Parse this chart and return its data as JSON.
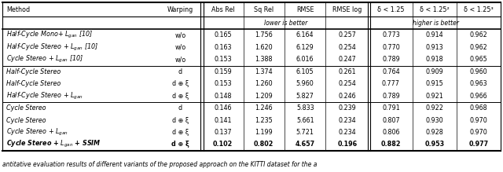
{
  "headers": [
    "Method",
    "Warping",
    "Abs Rel",
    "Sq Rel",
    "RMSE",
    "RMSE log",
    "δ < 1.25",
    "δ < 1.25²",
    "δ < 1.25³"
  ],
  "subheader1": "lower is better",
  "subheader2": "higher is better",
  "rows": [
    [
      "Half-Cycle Mono+ $L_{gan}$ [10]",
      "w/o",
      "0.165",
      "1.756",
      "6.164",
      "0.257",
      "0.773",
      "0.914",
      "0.962"
    ],
    [
      "Half-Cycle Stereo + $L_{gan}$ [10]",
      "w/o",
      "0.163",
      "1.620",
      "6.129",
      "0.254",
      "0.770",
      "0.913",
      "0.962"
    ],
    [
      "Cycle Stereo + $L_{gan}$ [10]",
      "w/o",
      "0.153",
      "1.388",
      "6.016",
      "0.247",
      "0.789",
      "0.918",
      "0.965"
    ],
    [
      "Half-Cycle Stereo",
      "d",
      "0.159",
      "1.374",
      "6.105",
      "0.261",
      "0.764",
      "0.909",
      "0.960"
    ],
    [
      "Half-Cycle Stereo",
      "d ⊕ ξ",
      "0.153",
      "1.260",
      "5.960",
      "0.254",
      "0.777",
      "0.915",
      "0.963"
    ],
    [
      "Half-Cycle Stereo + $L_{gan}$",
      "d ⊕ ξ",
      "0.148",
      "1.209",
      "5.827",
      "0.246",
      "0.789",
      "0.921",
      "0.966"
    ],
    [
      "Cycle Stereo",
      "d",
      "0.146",
      "1.246",
      "5.833",
      "0.239",
      "0.791",
      "0.922",
      "0.968"
    ],
    [
      "Cycle Stereo",
      "d ⊕ ξ",
      "0.141",
      "1.235",
      "5.661",
      "0.234",
      "0.807",
      "0.930",
      "0.970"
    ],
    [
      "Cycle Stereo + $L_{gan}$",
      "d ⊕ ξ",
      "0.137",
      "1.199",
      "5.721",
      "0.234",
      "0.806",
      "0.928",
      "0.970"
    ],
    [
      "Cycle Stereo + $L_{gan}$ + SSIM",
      "d ⊕ ξ",
      "0.102",
      "0.802",
      "4.657",
      "0.196",
      "0.882",
      "0.953",
      "0.977"
    ]
  ],
  "bold_row": 9,
  "group_dividers": [
    3,
    6
  ],
  "caption": "antitative evaluation results of different variants of the proposed approach on the KITTI dataset for the a",
  "fig_width": 6.4,
  "fig_height": 2.19,
  "fontsize": 5.8,
  "caption_fontsize": 5.5
}
